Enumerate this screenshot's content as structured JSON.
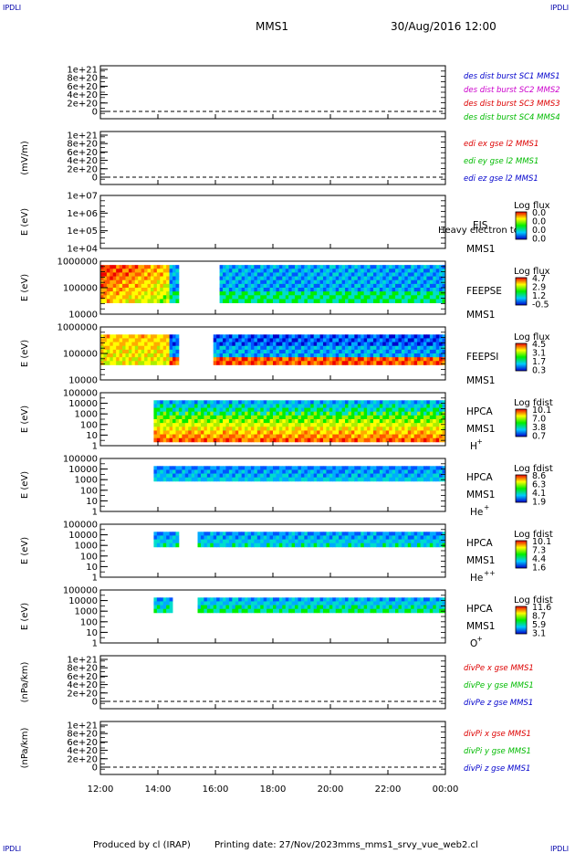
{
  "header": {
    "corner_label": "IPDLI",
    "mission": "MMS1",
    "datetime": "30/Aug/2016 12:00"
  },
  "footer": {
    "produced_by": "Produced by cl (IRAP)",
    "printing_date": "Printing date: 27/Nov/2023",
    "script_name": "mms_mms1_srvy_vue_web2.cl"
  },
  "colors": {
    "series_blue": "#0000cc",
    "series_magenta": "#cc00cc",
    "series_red": "#dd0000",
    "series_green": "#00bb00"
  },
  "time_axis": {
    "ticks": [
      "12:00",
      "14:00",
      "16:00",
      "18:00",
      "20:00",
      "22:00",
      "00:00"
    ]
  },
  "chart_data": [
    {
      "type": "line",
      "panel": 1,
      "ylabel": "",
      "yticks": [
        "1e+21",
        "8e+20",
        "6e+20",
        "4e+20",
        "2e+20",
        "0"
      ],
      "series": [
        {
          "name": "des dist burst SC1 MMS1",
          "color": "#0000cc",
          "values": []
        },
        {
          "name": "des dist burst SC2 MMS2",
          "color": "#cc00cc",
          "values": []
        },
        {
          "name": "des dist burst SC3 MMS3",
          "color": "#dd0000",
          "values": []
        },
        {
          "name": "des dist burst SC4 MMS4",
          "color": "#00bb00",
          "values": []
        }
      ]
    },
    {
      "type": "line",
      "panel": 2,
      "ylabel": "(mV/m)",
      "yticks": [
        "1e+21",
        "8e+20",
        "6e+20",
        "4e+20",
        "2e+20",
        "0"
      ],
      "series": [
        {
          "name": "edi ex gse l2 MMS1",
          "color": "#dd0000",
          "values": []
        },
        {
          "name": "edi ey gse l2 MMS1",
          "color": "#00bb00",
          "values": []
        },
        {
          "name": "edi ez gse l2 MMS1",
          "color": "#0000cc",
          "values": []
        }
      ]
    },
    {
      "type": "heatmap",
      "panel": 3,
      "ylabel": "E (eV)",
      "yticks": [
        "1e+07",
        "1e+06",
        "1e+05",
        "1e+04"
      ],
      "instrument": "EIS",
      "instrument_note": "Heavy electron tof",
      "spacecraft": "MMS1",
      "colorbar_title": "Log flux",
      "colorbar_ticks": [
        "0.0",
        "0.0",
        "0.0",
        "0.0"
      ]
    },
    {
      "type": "heatmap",
      "panel": 4,
      "ylabel": "E (eV)",
      "yticks": [
        "1000000",
        "100000",
        "10000"
      ],
      "instrument": "FEEPSE",
      "spacecraft": "MMS1",
      "colorbar_title": "Log flux",
      "colorbar_ticks": [
        "4.7",
        "2.9",
        "1.2",
        "-0.5"
      ]
    },
    {
      "type": "heatmap",
      "panel": 5,
      "ylabel": "E (eV)",
      "yticks": [
        "1000000",
        "100000",
        "10000"
      ],
      "instrument": "FEEPSI",
      "spacecraft": "MMS1",
      "colorbar_title": "Log flux",
      "colorbar_ticks": [
        "4.5",
        "3.1",
        "1.7",
        "0.3"
      ]
    },
    {
      "type": "heatmap",
      "panel": 6,
      "ylabel": "E (eV)",
      "yticks": [
        "100000",
        "10000",
        "1000",
        "100",
        "10",
        "1"
      ],
      "instrument": "HPCA",
      "spacecraft": "MMS1",
      "species": "H",
      "charge": "+",
      "colorbar_title": "Log fdist",
      "colorbar_ticks": [
        "10.1",
        "7.0",
        "3.8",
        "0.7"
      ]
    },
    {
      "type": "heatmap",
      "panel": 7,
      "ylabel": "E (eV)",
      "yticks": [
        "100000",
        "10000",
        "1000",
        "100",
        "10",
        "1"
      ],
      "instrument": "HPCA",
      "spacecraft": "MMS1",
      "species": "He",
      "charge": "+",
      "colorbar_title": "Log fdist",
      "colorbar_ticks": [
        "8.6",
        "6.3",
        "4.1",
        "1.9"
      ]
    },
    {
      "type": "heatmap",
      "panel": 8,
      "ylabel": "E (eV)",
      "yticks": [
        "100000",
        "10000",
        "1000",
        "100",
        "10",
        "1"
      ],
      "instrument": "HPCA",
      "spacecraft": "MMS1",
      "species": "He",
      "charge": "++",
      "colorbar_title": "Log fdist",
      "colorbar_ticks": [
        "10.1",
        "7.3",
        "4.4",
        "1.6"
      ]
    },
    {
      "type": "heatmap",
      "panel": 9,
      "ylabel": "E (eV)",
      "yticks": [
        "100000",
        "10000",
        "1000",
        "100",
        "10",
        "1"
      ],
      "instrument": "HPCA",
      "spacecraft": "MMS1",
      "species": "O",
      "charge": "+",
      "colorbar_title": "Log fdist",
      "colorbar_ticks": [
        "11.6",
        "8.7",
        "5.9",
        "3.1"
      ]
    },
    {
      "type": "line",
      "panel": 10,
      "ylabel": "(nPa/km)",
      "yticks": [
        "1e+21",
        "8e+20",
        "6e+20",
        "4e+20",
        "2e+20",
        "0"
      ],
      "series": [
        {
          "name": "divPe x gse MMS1",
          "color": "#dd0000",
          "values": []
        },
        {
          "name": "divPe y gse MMS1",
          "color": "#00bb00",
          "values": []
        },
        {
          "name": "divPe z gse MMS1",
          "color": "#0000cc",
          "values": []
        }
      ]
    },
    {
      "type": "line",
      "panel": 11,
      "ylabel": "(nPa/km)",
      "yticks": [
        "1e+21",
        "8e+20",
        "6e+20",
        "4e+20",
        "2e+20",
        "0"
      ],
      "series": [
        {
          "name": "divPi x gse MMS1",
          "color": "#dd0000",
          "values": []
        },
        {
          "name": "divPi y gse MMS1",
          "color": "#00bb00",
          "values": []
        },
        {
          "name": "divPi z gse MMS1",
          "color": "#0000cc",
          "values": []
        }
      ]
    }
  ]
}
